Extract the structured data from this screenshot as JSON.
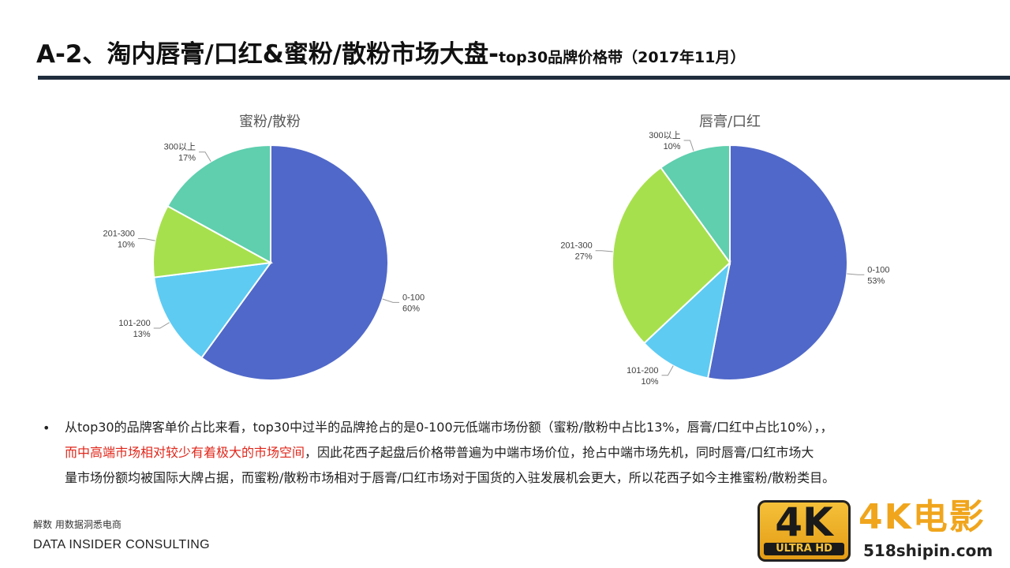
{
  "slide": {
    "title_main": "A-2、淘内唇膏/口红&蜜粉/散粉市场大盘-",
    "title_sub": "top30品牌价格带（2017年11月）"
  },
  "chart_data": [
    {
      "type": "pie",
      "title": "蜜粉/散粉",
      "slices": [
        {
          "label": "0-100",
          "pct_text": "60%",
          "value": 60,
          "color": "#5068c9"
        },
        {
          "label": "101-200",
          "pct_text": "13%",
          "value": 13,
          "color": "#5ecbf3"
        },
        {
          "label": "201-300",
          "pct_text": "10%",
          "value": 10,
          "color": "#a7e04d"
        },
        {
          "label": "300以上",
          "pct_text": "17%",
          "value": 17,
          "color": "#5fcfae"
        }
      ]
    },
    {
      "type": "pie",
      "title": "唇膏/口红",
      "slices": [
        {
          "label": "0-100",
          "pct_text": "53%",
          "value": 53,
          "color": "#5068c9"
        },
        {
          "label": "101-200",
          "pct_text": "10%",
          "value": 10,
          "color": "#5ecbf3"
        },
        {
          "label": "201-300",
          "pct_text": "27%",
          "value": 27,
          "color": "#a7e04d"
        },
        {
          "label": "300以上",
          "pct_text": "10%",
          "value": 10,
          "color": "#5fcfae"
        }
      ]
    }
  ],
  "bullet": {
    "line1": "从top30的品牌客单价占比来看，top30中过半的品牌抢占的是0-100元低端市场份额（蜜粉/散粉中占比13%，唇膏/口红中占比10%），，",
    "line2_red": "而中高端市场相对较少有着极大的市场空间",
    "line2_rest": "，因此花西子起盘后价格带普遍为中端市场价位，抢占中端市场先机，同时唇膏/口红市场大",
    "line3": "量市场份额均被国际大牌占据，而蜜粉/散粉市场相对于唇膏/口红市场对于国货的入驻发展机会更大，所以花西子如今主推蜜粉/散粉类目。"
  },
  "footer": {
    "cn": "解数 用数据洞悉电商",
    "en": "DATA INSIDER CONSULTING"
  },
  "watermark": {
    "badge_big": "4K",
    "badge_small": "ULTRA HD",
    "title": "4K电影",
    "url": "518shipin.com"
  }
}
